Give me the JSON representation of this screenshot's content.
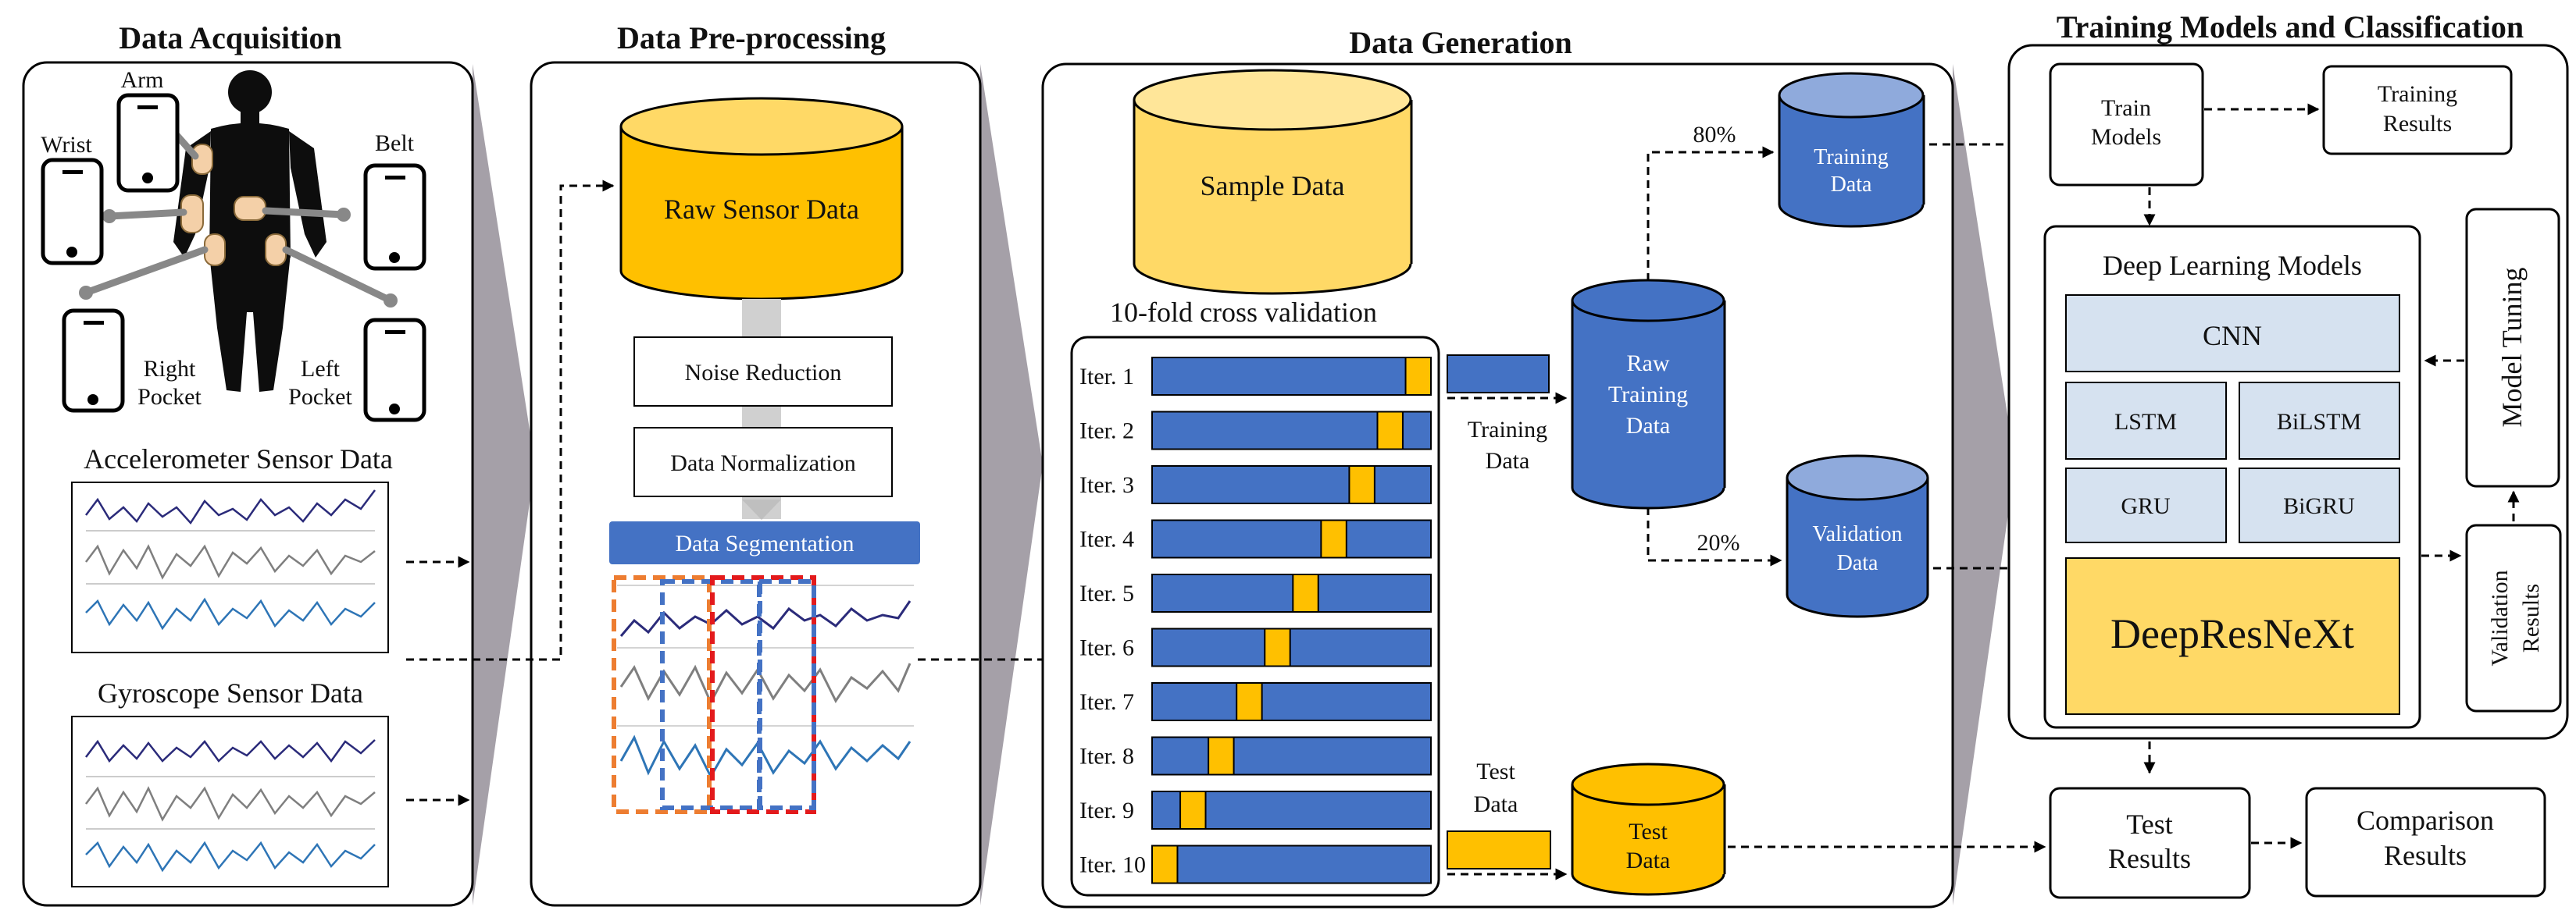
{
  "sections": {
    "acquisition": "Data Acquisition",
    "preprocessing": "Data Pre-processing",
    "generation": "Data Generation",
    "training": "Training Models and Classification"
  },
  "acquisition": {
    "positions": {
      "arm": "Arm",
      "wrist": "Wrist",
      "belt": "Belt",
      "right": [
        "Right",
        "Pocket"
      ],
      "left": [
        "Left",
        "Pocket"
      ]
    },
    "accelerometer": "Accelerometer Sensor Data",
    "gyroscope": "Gyroscope Sensor Data"
  },
  "preprocessing": {
    "raw": "Raw Sensor Data",
    "noise": "Noise Reduction",
    "normalization": "Data Normalization",
    "segmentation": "Data Segmentation"
  },
  "generation": {
    "sample": "Sample Data",
    "cv_title": "10-fold cross validation",
    "iterations": [
      "Iter. 1",
      "Iter. 2",
      "Iter. 3",
      "Iter. 4",
      "Iter. 5",
      "Iter. 6",
      "Iter. 7",
      "Iter. 8",
      "Iter. 9",
      "Iter. 10"
    ],
    "training_data_label": [
      "Training",
      "Data"
    ],
    "test_data_label": [
      "Test",
      "Data"
    ],
    "raw_training": [
      "Raw",
      "Training",
      "Data"
    ],
    "training": [
      "Training",
      "Data"
    ],
    "validation": [
      "Validation",
      "Data"
    ],
    "test": [
      "Test",
      "Data"
    ],
    "split_train": "80%",
    "split_val": "20%"
  },
  "training": {
    "train_models": [
      "Train",
      "Models"
    ],
    "training_results": [
      "Training",
      "Results"
    ],
    "dl_title": "Deep  Learning  Models",
    "models": {
      "cnn": "CNN",
      "lstm": "LSTM",
      "bilstm": "BiLSTM",
      "gru": "GRU",
      "bigru": "BiGRU",
      "deep": "DeepResNeXt"
    },
    "model_tuning": "Model Tuning",
    "validation_results": [
      "Validation",
      "Results"
    ],
    "test_results": [
      "Test",
      "Results"
    ],
    "comparison_results": [
      "Comparison",
      "Results"
    ]
  },
  "colors": {
    "blue": "#4472C4",
    "blue_dark": "#2F5597",
    "blue_light": "#8FAADC",
    "gold": "#FFC000",
    "gold_light": "#FFD966",
    "gold_pale": "#FFE699",
    "model_fill": "#D6E2F0",
    "gray_band": "#A6A1A8",
    "chevron": "#A5A0A8"
  }
}
